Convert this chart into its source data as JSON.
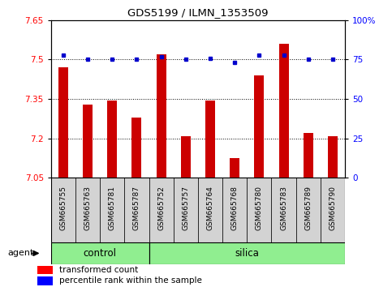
{
  "title": "GDS5199 / ILMN_1353509",
  "samples": [
    "GSM665755",
    "GSM665763",
    "GSM665781",
    "GSM665787",
    "GSM665752",
    "GSM665757",
    "GSM665764",
    "GSM665768",
    "GSM665780",
    "GSM665783",
    "GSM665789",
    "GSM665790"
  ],
  "n_control": 4,
  "n_silica": 8,
  "red_values": [
    7.47,
    7.33,
    7.345,
    7.28,
    7.52,
    7.21,
    7.345,
    7.125,
    7.44,
    7.56,
    7.22,
    7.21
  ],
  "blue_values": [
    78,
    75,
    75,
    75,
    77,
    75,
    76,
    73,
    78,
    78,
    75,
    75
  ],
  "ylim_left": [
    7.05,
    7.65
  ],
  "ylim_right": [
    0,
    100
  ],
  "yticks_left": [
    7.05,
    7.2,
    7.35,
    7.5,
    7.65
  ],
  "yticks_right": [
    0,
    25,
    50,
    75,
    100
  ],
  "ytick_labels_right": [
    "0",
    "25",
    "50",
    "75",
    "100%"
  ],
  "hlines": [
    7.2,
    7.35,
    7.5
  ],
  "bar_color": "#cc0000",
  "dot_color": "#0000cc",
  "green_color": "#90ee90",
  "gray_color": "#d3d3d3",
  "white": "#ffffff",
  "legend_red": "transformed count",
  "legend_blue": "percentile rank within the sample",
  "agent_label": "agent",
  "control_label": "control",
  "silica_label": "silica",
  "bar_width": 0.4
}
